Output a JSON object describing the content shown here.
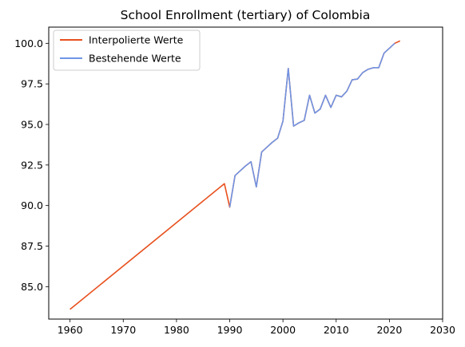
{
  "chart_data": {
    "type": "line",
    "title": "School Enrollment (tertiary) of Colombia",
    "xlabel": "",
    "ylabel": "",
    "xlim": [
      1956,
      2030
    ],
    "ylim": [
      83.0,
      101.0
    ],
    "xticks": [
      1960,
      1970,
      1980,
      1990,
      2000,
      2010,
      2020,
      2030
    ],
    "yticks": [
      85.0,
      87.5,
      90.0,
      92.5,
      95.0,
      97.5,
      100.0
    ],
    "ytick_labels": [
      "85.0",
      "87.5",
      "90.0",
      "92.5",
      "95.0",
      "97.5",
      "100.0"
    ],
    "grid": false,
    "legend_position": "top-left",
    "series": [
      {
        "name": "Interpolierte Werte",
        "color": "#e8501e",
        "x": [
          1960,
          1989,
          1990,
          1991,
          1992,
          1993,
          1994,
          1995,
          1996,
          1997,
          1998,
          1999,
          2000,
          2001,
          2002,
          2003,
          2004,
          2005,
          2006,
          2007,
          2008,
          2009,
          2010,
          2011,
          2012,
          2013,
          2014,
          2015,
          2016,
          2017,
          2018,
          2019,
          2020,
          2021,
          2022
        ],
        "y": [
          83.6,
          91.35,
          89.9,
          91.85,
          92.15,
          92.45,
          92.7,
          91.15,
          93.3,
          93.6,
          93.9,
          94.15,
          95.2,
          98.45,
          94.9,
          95.1,
          95.25,
          96.8,
          95.7,
          95.95,
          96.8,
          96.05,
          96.8,
          96.7,
          97.05,
          97.75,
          97.8,
          98.2,
          98.4,
          98.5,
          98.5,
          99.4,
          99.7,
          100.0,
          100.15
        ]
      },
      {
        "name": "Bestehende Werte",
        "color": "#6f95e6",
        "x": [
          1990,
          1991,
          1992,
          1993,
          1994,
          1995,
          1996,
          1997,
          1998,
          1999,
          2000,
          2001,
          2002,
          2003,
          2004,
          2005,
          2006,
          2007,
          2008,
          2009,
          2010,
          2011,
          2012,
          2013,
          2014,
          2015,
          2016,
          2017,
          2018,
          2019,
          2020,
          2021
        ],
        "y": [
          89.9,
          91.85,
          92.15,
          92.45,
          92.7,
          91.15,
          93.3,
          93.6,
          93.9,
          94.15,
          95.2,
          98.45,
          94.9,
          95.1,
          95.25,
          96.8,
          95.7,
          95.95,
          96.8,
          96.05,
          96.8,
          96.7,
          97.05,
          97.75,
          97.8,
          98.2,
          98.4,
          98.5,
          98.5,
          99.4,
          99.7,
          100.0
        ]
      }
    ]
  }
}
